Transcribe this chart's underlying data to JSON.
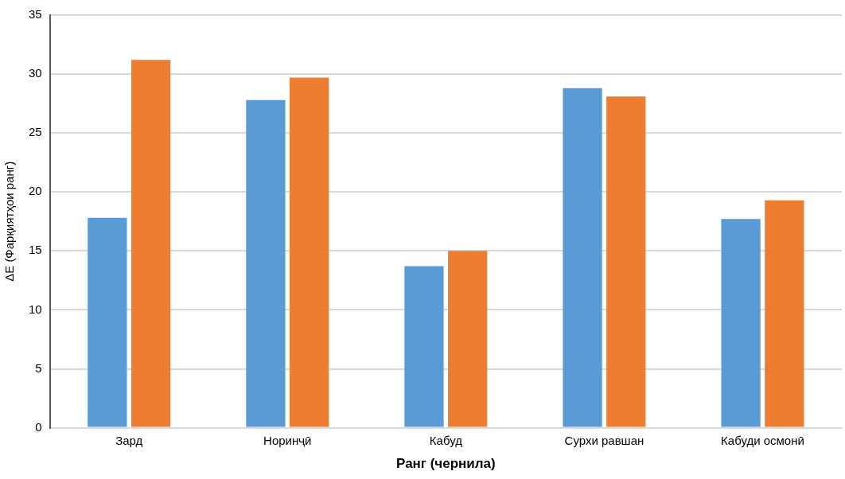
{
  "chart_data": {
    "type": "bar",
    "xlabel": "Ранг (чернила)",
    "ylabel": "ΔE (Фарқиятҳои ранг)",
    "categories": [
      "Зард",
      "Норинҷӣ",
      "Кабуд",
      "Сурхи равшан",
      "Кабуди осмонӣ"
    ],
    "series": [
      {
        "color": "#5b9bd5",
        "values": [
          17.8,
          27.8,
          13.7,
          28.8,
          17.7
        ]
      },
      {
        "color": "#ed7d31",
        "values": [
          31.2,
          29.7,
          15.0,
          28.1,
          19.3
        ]
      }
    ],
    "ylim": [
      0,
      35
    ],
    "yticks": [
      0,
      5,
      10,
      15,
      20,
      25,
      30,
      35
    ],
    "grid": "y",
    "legend": false
  }
}
